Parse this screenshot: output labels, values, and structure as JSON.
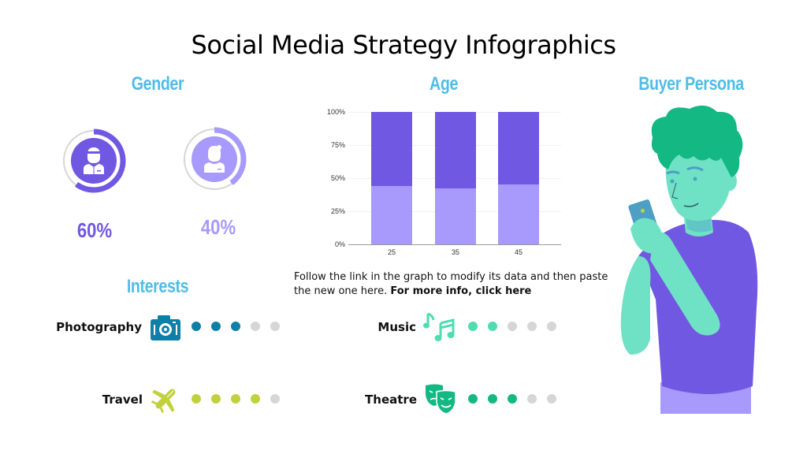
{
  "title": "Social Media Strategy Infographics",
  "gender": {
    "heading": "Gender",
    "male": {
      "icon": "male-user-icon",
      "percent_label": "60%",
      "value": 60,
      "color": "#7158e2"
    },
    "female": {
      "icon": "female-user-icon",
      "percent_label": "40%",
      "value": 40,
      "color": "#a899fc"
    },
    "ring_track_color": "#d6d6d6"
  },
  "age": {
    "heading": "Age",
    "description": "Follow the link in the graph to modify its data and then paste the new one here.",
    "link_text": "For more info, click here"
  },
  "chart_data": {
    "type": "bar",
    "stacked": true,
    "title": "Age",
    "categories": [
      "25",
      "35",
      "45"
    ],
    "series": [
      {
        "name": "Female",
        "color": "#a899fc",
        "values": [
          44,
          42,
          45
        ]
      },
      {
        "name": "Male",
        "color": "#7158e2",
        "values": [
          56,
          58,
          55
        ]
      }
    ],
    "ylim": [
      0,
      100
    ],
    "yticks": [
      "0%",
      "25%",
      "50%",
      "75%",
      "100%"
    ],
    "grid": true,
    "legend": "none",
    "xlabel": "",
    "ylabel": ""
  },
  "interests": {
    "heading": "Interests",
    "items": [
      {
        "label": "Photography",
        "icon": "camera-icon",
        "color": "#0e7fa6",
        "filled": 3,
        "total": 5
      },
      {
        "label": "Travel",
        "icon": "airplane-icon",
        "color": "#c1d13d",
        "filled": 4,
        "total": 5
      },
      {
        "label": "Music",
        "icon": "music-notes-icon",
        "color": "#4fdcb0",
        "filled": 2,
        "total": 5
      },
      {
        "label": "Theatre",
        "icon": "theatre-masks-icon",
        "color": "#14b883",
        "filled": 3,
        "total": 5
      }
    ],
    "empty_dot_color": "#d6d6d6"
  },
  "persona": {
    "heading": "Buyer Persona",
    "illustration": "man-with-phone-illustration"
  }
}
